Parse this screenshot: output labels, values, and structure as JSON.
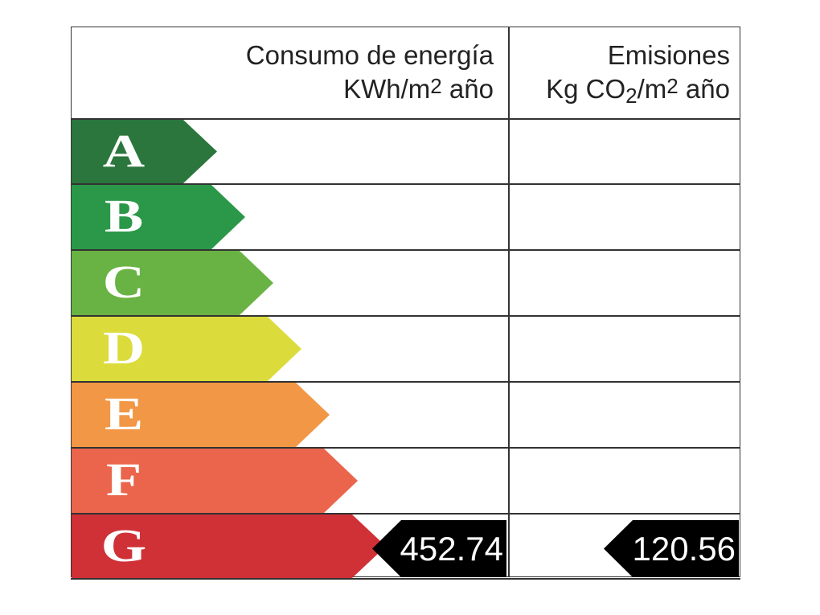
{
  "header": {
    "energy_title": "Consumo de energía",
    "energy_unit_prefix": "KWh/m",
    "energy_unit_sup": "2",
    "energy_unit_suffix": " año",
    "emissions_title": "Emisiones",
    "emissions_unit_prefix": "Kg CO",
    "emissions_unit_sub": "2",
    "emissions_unit_mid": "/m",
    "emissions_unit_sup": "2",
    "emissions_unit_suffix": " año"
  },
  "ratings": [
    {
      "letter": "A",
      "color": "#2b763d"
    },
    {
      "letter": "B",
      "color": "#2a9848"
    },
    {
      "letter": "C",
      "color": "#69b244"
    },
    {
      "letter": "D",
      "color": "#dbdb3b"
    },
    {
      "letter": "E",
      "color": "#f29745"
    },
    {
      "letter": "F",
      "color": "#ea654c"
    },
    {
      "letter": "G",
      "color": "#cf3137"
    }
  ],
  "current_rating": "G",
  "energy_value": "452.74",
  "emissions_value": "120.56"
}
